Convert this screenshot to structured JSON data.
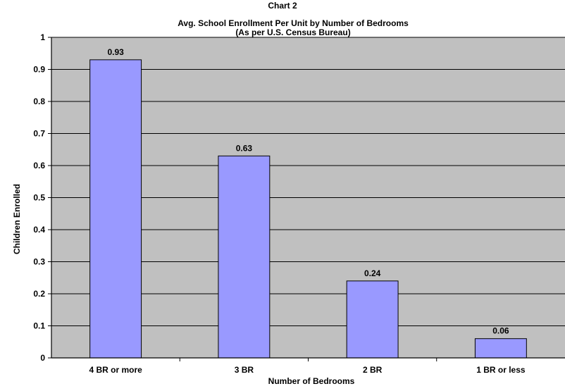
{
  "chart_data": {
    "type": "bar",
    "super_title": "Chart 2",
    "title": "Avg. School Enrollment Per Unit by Number of Bedrooms",
    "subtitle": "(As per U.S. Census Bureau)",
    "xlabel": "Number of Bedrooms",
    "ylabel": "Children Enrolled",
    "categories": [
      "4 BR or more",
      "3 BR",
      "2 BR",
      "1 BR or less"
    ],
    "values": [
      0.93,
      0.63,
      0.24,
      0.06
    ],
    "data_labels": [
      "0.93",
      "0.63",
      "0.24",
      "0.06"
    ],
    "ylim": [
      0,
      1
    ],
    "yticks": [
      "0",
      "0.1",
      "0.2",
      "0.3",
      "0.4",
      "0.5",
      "0.6",
      "0.7",
      "0.8",
      "0.9",
      "1"
    ],
    "grid": true,
    "legend": "none",
    "colors": {
      "bar": "#9999ff",
      "bar_border": "#000000",
      "plot_background": "#c0c0c0",
      "gridline": "#000000"
    }
  }
}
